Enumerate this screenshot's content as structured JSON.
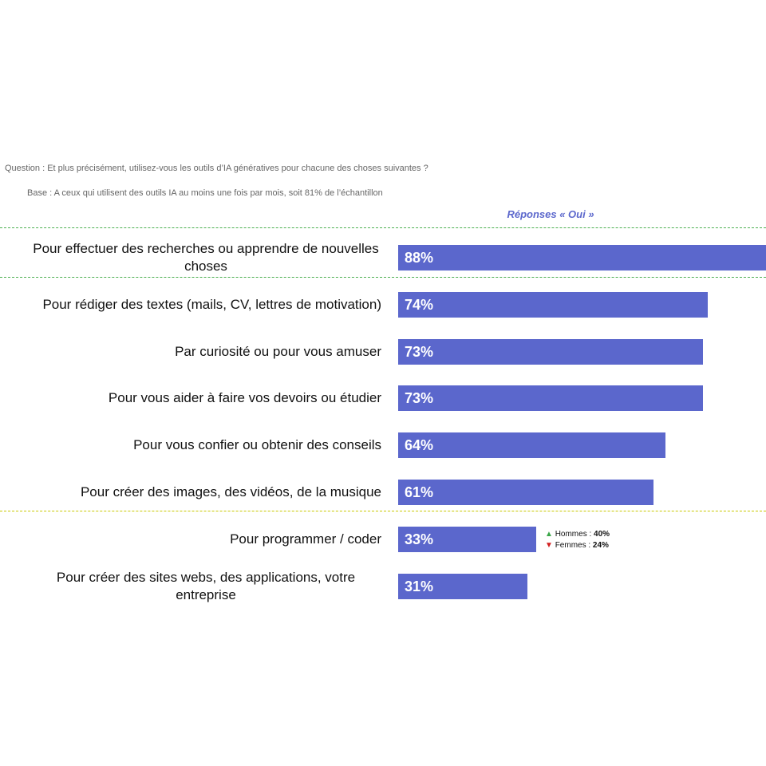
{
  "chart_data": {
    "type": "bar",
    "orientation": "horizontal",
    "title": "Question : Et plus précisément, utilisez-vous les outils d’IA génératives pour chacune des choses suivantes ?",
    "subtitle": "Base : A ceux qui utilisent des outils IA au moins une fois par mois, soit 81% de l’échantillon",
    "series_label": "Réponses « Oui »",
    "categories": [
      "Pour effectuer des recherches ou apprendre de nouvelles choses",
      "Pour rédiger des textes (mails, CV, lettres de motivation)",
      "Par curiosité ou pour vous amuser",
      "Pour vous aider à faire vos devoirs ou étudier",
      "Pour vous confier ou obtenir des conseils",
      "Pour créer des images, des vidéos, de la musique",
      "Pour programmer / coder",
      "Pour créer des sites webs, des applications, votre entreprise"
    ],
    "values": [
      88,
      74,
      73,
      73,
      64,
      61,
      33,
      31
    ],
    "value_labels": [
      "88%",
      "74%",
      "73%",
      "73%",
      "64%",
      "61%",
      "33%",
      "31%"
    ],
    "color": "#5b67cc",
    "annotations": [
      {
        "category": 6,
        "label": "Hommes :",
        "value_label": "40%"
      },
      {
        "category": 6,
        "label": "Femmes :",
        "value_label": "24%"
      }
    ]
  }
}
